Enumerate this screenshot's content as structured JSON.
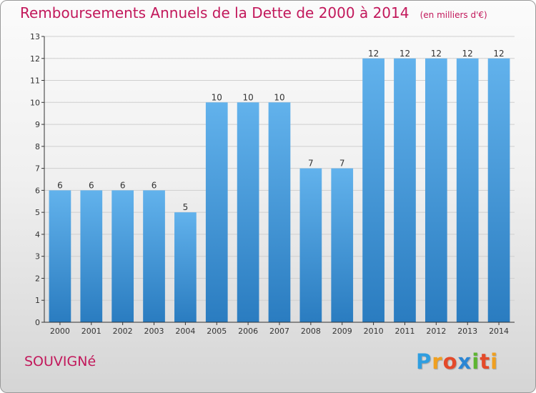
{
  "colors": {
    "title": "#c2185b",
    "bar_light": "#62b2ec",
    "bar_dark": "#2a7cc0",
    "axis": "#333333",
    "grid": "#cfcfcf"
  },
  "footer": {
    "place": "SOUVIGNé",
    "logo_letters": [
      "P",
      "r",
      "o",
      "x",
      "i",
      "t",
      "i"
    ],
    "logo_colors": [
      "#2f9ee0",
      "#f0a020",
      "#e44a2a",
      "#2b86d4",
      "#5db531",
      "#e44a2a",
      "#f0a020"
    ]
  },
  "chart_data": {
    "type": "bar",
    "title": "Remboursements Annuels de la Dette de 2000 à 2014",
    "unit_label": "(en milliers d'€)",
    "xlabel": "",
    "ylabel": "",
    "categories": [
      "2000",
      "2001",
      "2002",
      "2003",
      "2004",
      "2005",
      "2006",
      "2007",
      "2008",
      "2009",
      "2010",
      "2011",
      "2012",
      "2013",
      "2014"
    ],
    "values": [
      6,
      6,
      6,
      6,
      5,
      10,
      10,
      10,
      7,
      7,
      12,
      12,
      12,
      12,
      12
    ],
    "data_labels": [
      "6",
      "6",
      "6",
      "6",
      "5",
      "10",
      "10",
      "10",
      "7",
      "7",
      "12",
      "12",
      "12",
      "12",
      "12"
    ],
    "yticks": [
      "0",
      "1",
      "2",
      "3",
      "4",
      "5",
      "6",
      "7",
      "8",
      "9",
      "10",
      "11",
      "12",
      "13"
    ],
    "ylim": [
      0,
      13
    ],
    "grid": true,
    "legend": "none"
  }
}
